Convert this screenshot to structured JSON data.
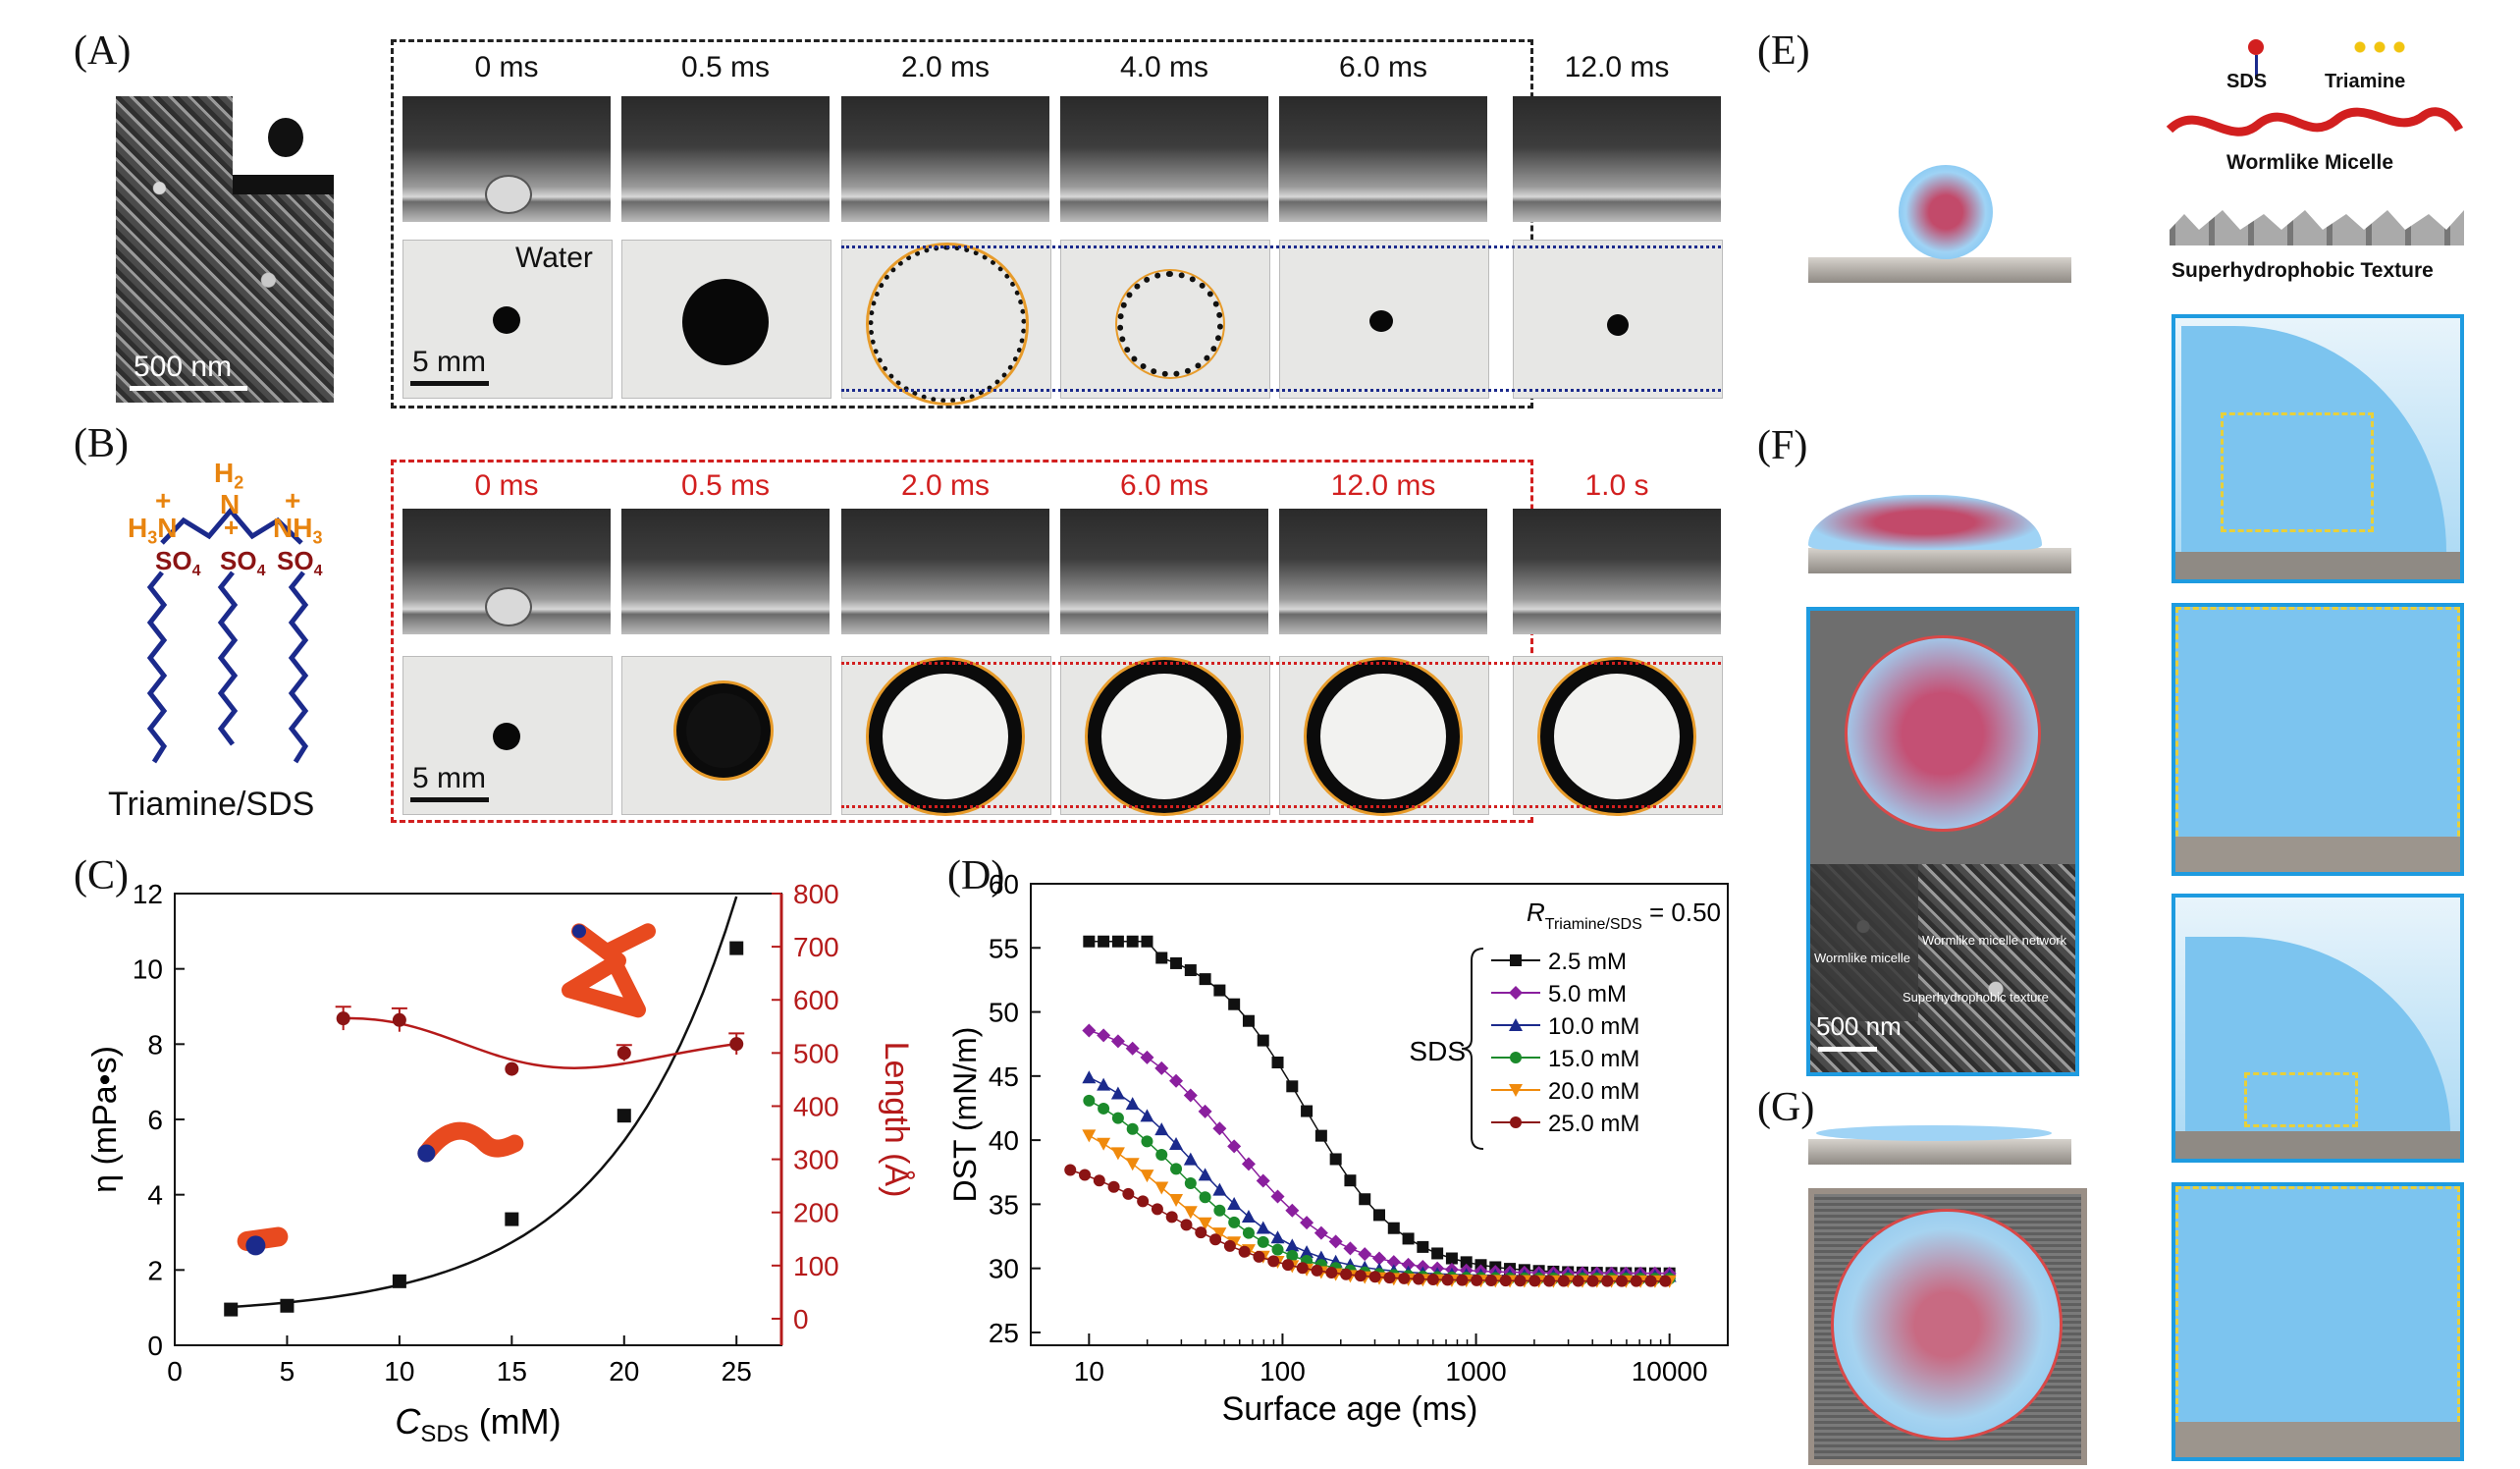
{
  "panels": {
    "A": "(A)",
    "B": "(B)",
    "C": "(C)",
    "D": "(D)",
    "E": "(E)",
    "F": "(F)",
    "G": "(G)"
  },
  "panel_a": {
    "sem_scale": "500 nm",
    "times": [
      "0 ms",
      "0.5 ms",
      "2.0 ms",
      "4.0 ms",
      "6.0 ms",
      "12.0 ms"
    ],
    "liquid_label": "Water",
    "scale": "5 mm"
  },
  "panel_b": {
    "times": [
      "0 ms",
      "0.5 ms",
      "2.0 ms",
      "6.0 ms",
      "12.0 ms",
      "1.0 s"
    ],
    "scale": "5 mm",
    "caption": "Triamine/SDS",
    "h2": "H",
    "h2sub": "2",
    "n": "N",
    "h3n": "H",
    "h3nsub": "3",
    "nname": "N",
    "nh3": "NH",
    "nh3sub": "3",
    "so4": "SO",
    "so4sub": "4",
    "plus": "+",
    "minus": "−"
  },
  "panel_e": {
    "sds": "SDS",
    "triamine": "Triamine",
    "micelle": "Wormlike Micelle",
    "texture": "Superhydrophobic Texture"
  },
  "panel_f_inset": {
    "wormlike_micelle": "Wormlike micelle",
    "network": "Wormlike micelle network",
    "texture": "Superhydrophobic texture",
    "scale": "500 nm"
  },
  "colors": {
    "black": "#111111",
    "red": "#b51a1a",
    "orange": "#e8840f",
    "navy": "#1b2a8c",
    "blue": "#1e9be0"
  },
  "chart_data": [
    {
      "type": "scatter",
      "id": "C",
      "xlabel_main": "C",
      "xlabel_sub": "SDS",
      "xlabel_unit": " (mM)",
      "ylabel": "η (mPa•s)",
      "y2label": "Length (Å)",
      "xlim": [
        0,
        27
      ],
      "ylim": [
        0,
        12
      ],
      "y2lim": [
        -50,
        800
      ],
      "xticks": [
        0,
        5,
        10,
        15,
        20,
        25
      ],
      "yticks": [
        0,
        2,
        4,
        6,
        8,
        10,
        12
      ],
      "y2ticks": [
        0,
        100,
        200,
        300,
        400,
        500,
        600,
        700,
        800
      ],
      "series": [
        {
          "name": "η",
          "axis": "left",
          "color": "#111111",
          "marker": "square",
          "x": [
            2.5,
            5,
            10,
            15,
            20,
            25
          ],
          "y": [
            0.95,
            1.05,
            1.7,
            3.35,
            6.1,
            10.55
          ]
        },
        {
          "name": "Length",
          "axis": "right",
          "color": "#b51a1a",
          "marker": "circle",
          "x": [
            7.5,
            10,
            15,
            20,
            25
          ],
          "y": [
            565,
            562,
            470,
            500,
            517
          ],
          "yerr": [
            22,
            22,
            0,
            15,
            20
          ]
        }
      ]
    },
    {
      "type": "scatter",
      "id": "D",
      "xlabel": "Surface age (ms)",
      "ylabel": "DST (mN/m)",
      "xscale": "log",
      "xlim": [
        5,
        20000
      ],
      "ylim": [
        24,
        60
      ],
      "xticks": [
        10,
        100,
        1000,
        10000
      ],
      "xtick_labels": [
        "10",
        "100",
        "1000",
        "10000"
      ],
      "yticks": [
        25,
        30,
        35,
        40,
        45,
        50,
        55,
        60
      ],
      "legend_title": "R",
      "legend_title_sub": "Triamine/SDS",
      "legend_title_value": " = 0.50",
      "legend_group": "SDS",
      "series": [
        {
          "name": "2.5 mM",
          "color": "#111111",
          "marker": "square"
        },
        {
          "name": "5.0 mM",
          "color": "#8a1f9e",
          "marker": "diamond"
        },
        {
          "name": "10.0 mM",
          "color": "#1b2a8c",
          "marker": "triangle"
        },
        {
          "name": "15.0 mM",
          "color": "#1b8a2b",
          "marker": "circle"
        },
        {
          "name": "20.0 mM",
          "color": "#f08a0c",
          "marker": "tri-down"
        },
        {
          "name": "25.0 mM",
          "color": "#8b1414",
          "marker": "circle"
        }
      ],
      "series_params": [
        {
          "start": 55.5,
          "mid": 130,
          "width": 0.55,
          "end": 29.6,
          "x0": 10,
          "plateau": true
        },
        {
          "start": 49.8,
          "mid": 55,
          "width": 0.6,
          "end": 29.6,
          "x0": 10
        },
        {
          "start": 47.0,
          "mid": 35,
          "width": 0.6,
          "end": 29.4,
          "x0": 10
        },
        {
          "start": 45.5,
          "mid": 30,
          "width": 0.6,
          "end": 29.2,
          "x0": 10
        },
        {
          "start": 43.0,
          "mid": 25,
          "width": 0.6,
          "end": 29.0,
          "x0": 10
        },
        {
          "start": 39.5,
          "mid": 25,
          "width": 0.7,
          "end": 29.0,
          "x0": 8
        }
      ]
    }
  ]
}
